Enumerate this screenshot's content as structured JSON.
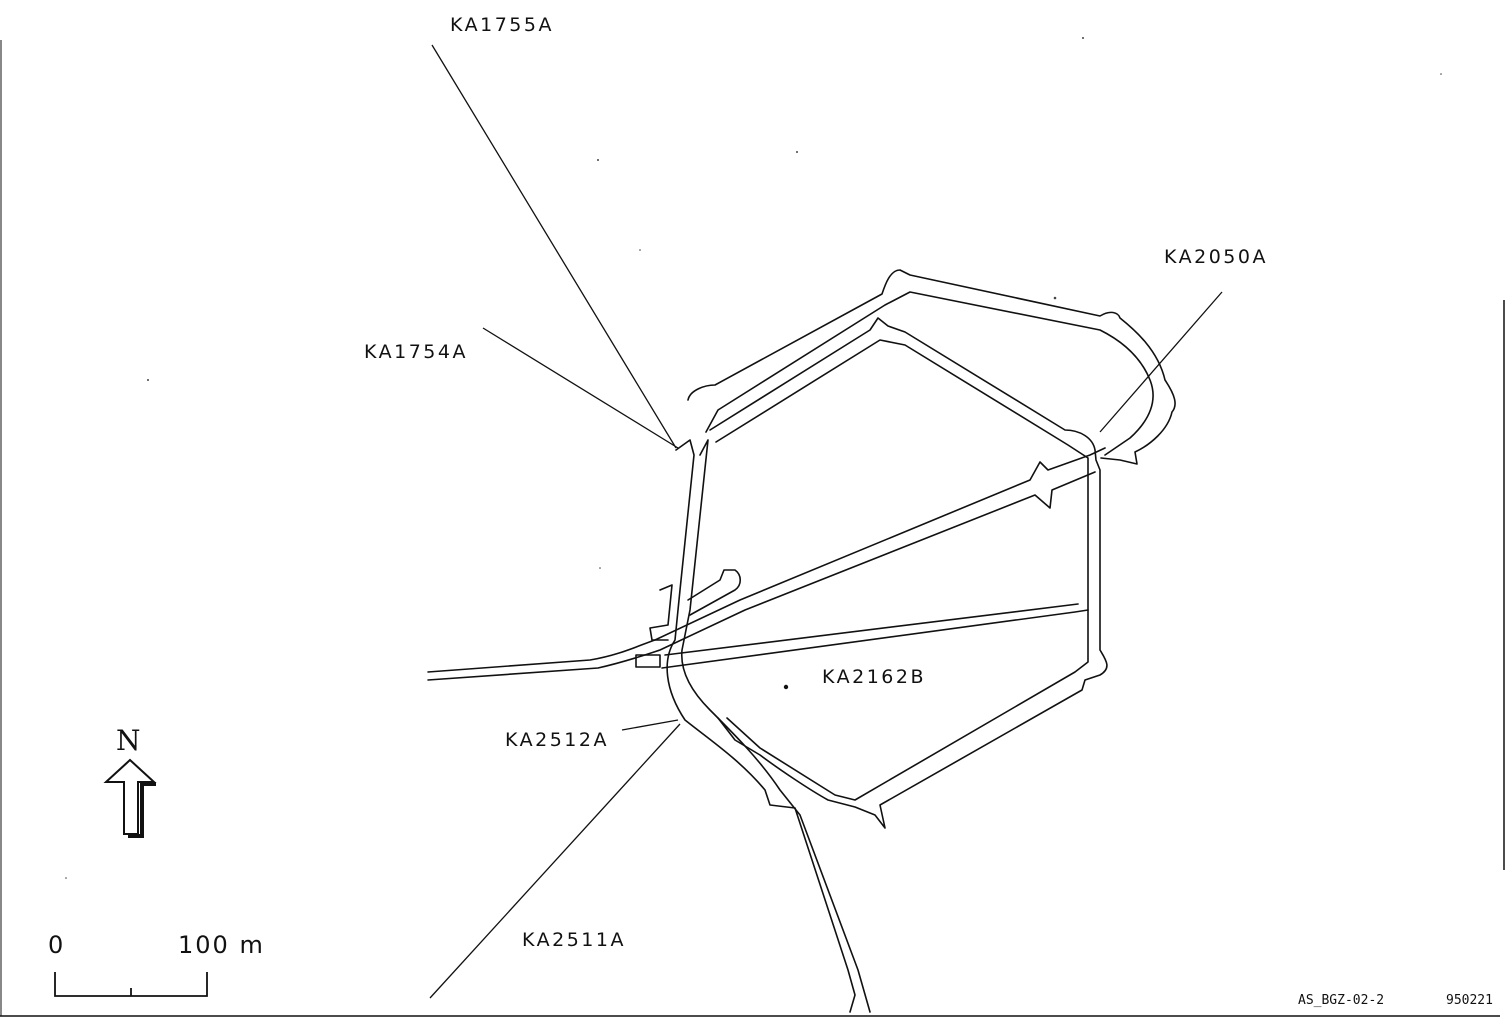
{
  "boreholes": [
    {
      "id": "KA1755A"
    },
    {
      "id": "KA1754A"
    },
    {
      "id": "KA2050A"
    },
    {
      "id": "KA2162B"
    },
    {
      "id": "KA2512A"
    },
    {
      "id": "KA2511A"
    }
  ],
  "north_arrow": {
    "label": "N"
  },
  "scale_bar": {
    "start_label": "0",
    "end_label": "100 m",
    "length_m": 100
  },
  "footer": {
    "drawing_id": "AS_BGZ-02-2",
    "date_code": "950221"
  },
  "colors": {
    "ink": "#111111",
    "background": "#ffffff"
  }
}
